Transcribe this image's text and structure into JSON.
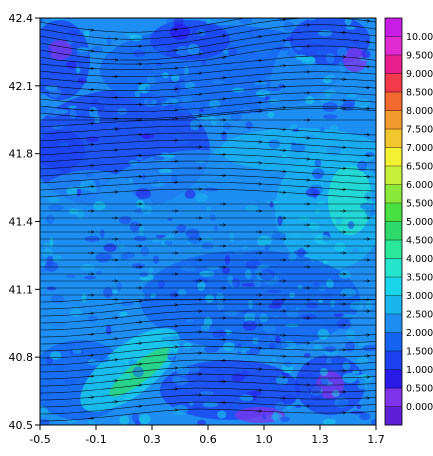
{
  "chart_data": {
    "type": "heatmap",
    "title": "",
    "xlabel": "",
    "ylabel": "",
    "xlim": [
      -0.5,
      1.7
    ],
    "ylim": [
      40.5,
      42.4
    ],
    "x_ticks": [
      "-0.5",
      "-0.1",
      "0.3",
      "0.6",
      "1.0",
      "1.3",
      "1.7"
    ],
    "y_ticks": [
      "40.5",
      "40.8",
      "41.1",
      "41.4",
      "41.8",
      "42.1",
      "42.4"
    ],
    "overlay": "streamlines",
    "streamline_direction": "west-to-east",
    "colorbar": {
      "placement": "right",
      "levels": [
        "0.000",
        "0.500",
        "1.000",
        "1.500",
        "2.000",
        "2.500",
        "3.000",
        "3.500",
        "4.000",
        "4.500",
        "5.000",
        "5.500",
        "6.000",
        "6.500",
        "7.000",
        "7.500",
        "8.000",
        "8.500",
        "9.000",
        "9.500",
        "10.00"
      ],
      "colors": [
        "#5f1fd6",
        "#7e34e8",
        "#2a1ae8",
        "#1d3ff0",
        "#1563f2",
        "#1e8ef2",
        "#19b5ef",
        "#1ad5ea",
        "#25e6cc",
        "#29e89c",
        "#2ed96b",
        "#49e042",
        "#8ae83a",
        "#c8f03a",
        "#f2f232",
        "#f2c62e",
        "#f29a2e",
        "#f26a2e",
        "#f23a4a",
        "#e81e8c",
        "#e02ad2",
        "#c81ee6"
      ]
    }
  }
}
